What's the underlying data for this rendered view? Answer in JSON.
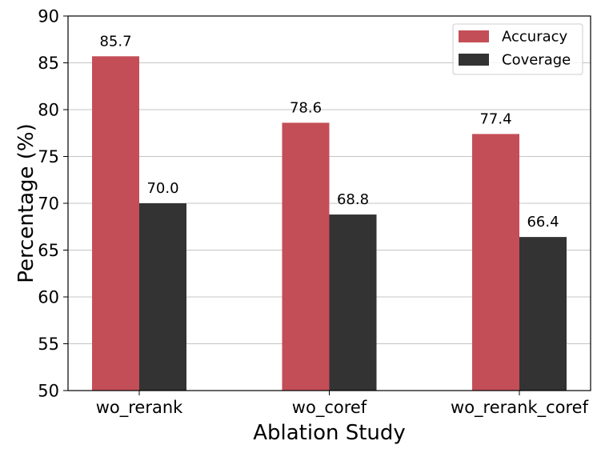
{
  "chart_data": {
    "type": "bar",
    "title": "",
    "xlabel": "Ablation Study",
    "ylabel": "Percentage (%)",
    "categories": [
      "wo_rerank",
      "wo_coref",
      "wo_rerank_coref"
    ],
    "series": [
      {
        "name": "Accuracy",
        "values": [
          85.7,
          78.6,
          77.4
        ],
        "labels": [
          "85.7",
          "78.6",
          "77.4"
        ],
        "color": "#c44e57"
      },
      {
        "name": "Coverage",
        "values": [
          70.0,
          68.8,
          66.4
        ],
        "labels": [
          "70.0",
          "68.8",
          "66.4"
        ],
        "color": "#333333"
      }
    ],
    "ylim": [
      50,
      90
    ],
    "yticks": [
      50,
      55,
      60,
      65,
      70,
      75,
      80,
      85,
      90
    ],
    "ytick_labels": [
      "50",
      "55",
      "60",
      "65",
      "70",
      "75",
      "80",
      "85",
      "90"
    ],
    "grid": "y",
    "legend_position": "top-right"
  }
}
